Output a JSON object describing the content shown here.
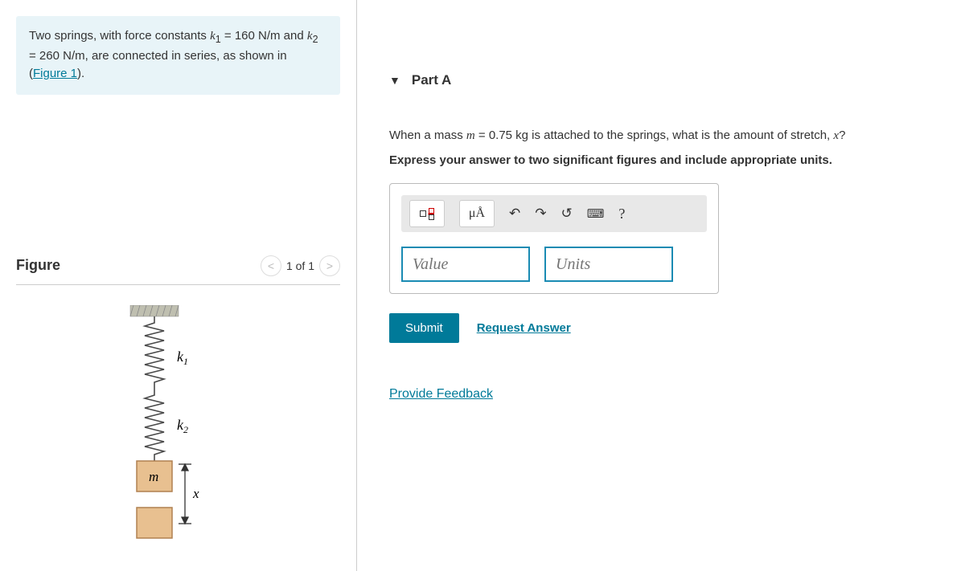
{
  "problem": {
    "html": "Two springs, with force constants <span class='math'>k</span><sub>1</sub> = 160 N/m and <span class='math'>k</span><sub>2</sub> = 260 N/m, are connected in series, as shown in (<a href='#' data-name='figure-link' data-interactable='true'>Figure 1</a>)."
  },
  "figure": {
    "title": "Figure",
    "counter": "1 of 1",
    "labels": {
      "k1": "k",
      "k1_sub": "1",
      "k2": "k",
      "k2_sub": "2",
      "m": "m",
      "x": "x"
    },
    "colors": {
      "wall": "#bfbfb0",
      "spring": "#4a4a4a",
      "mass_fill": "#e8c090",
      "mass_stroke": "#b08050",
      "arrow": "#333333"
    }
  },
  "part": {
    "label": "Part A",
    "question_html": "When a mass <span class='math'>m</span> = 0.75 kg is attached to the springs, what is the amount of stretch, <span class='math'>x</span>?",
    "instruction": "Express your answer to two significant figures and include appropriate units."
  },
  "answer": {
    "value_placeholder": "Value",
    "units_placeholder": "Units",
    "toolbar": {
      "templates_title": "Templates",
      "special_chars": "μÅ",
      "undo": "↶",
      "redo": "↷",
      "reset": "↺",
      "keyboard": "⌨",
      "help": "?"
    }
  },
  "buttons": {
    "submit": "Submit",
    "request_answer": "Request Answer",
    "feedback": "Provide Feedback"
  },
  "colors": {
    "accent": "#007a99",
    "info_bg": "#e8f4f8",
    "toolbar_bg": "#e8e8e8",
    "input_border": "#1a8bb3"
  }
}
